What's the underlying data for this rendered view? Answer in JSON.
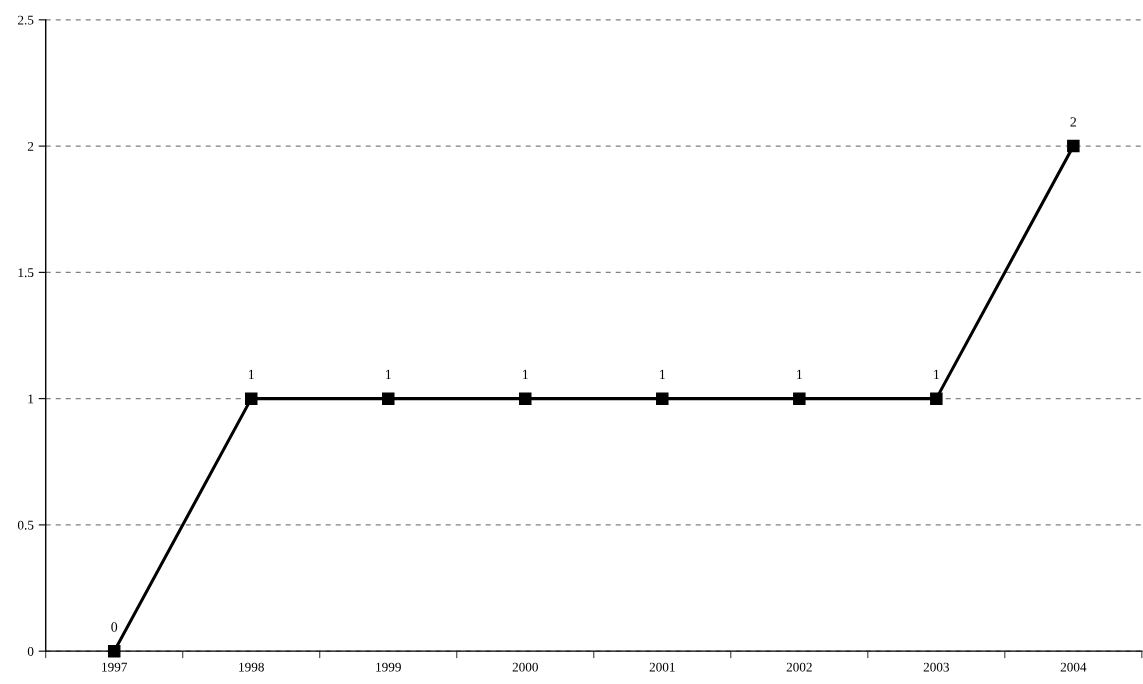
{
  "chart_data": {
    "type": "line",
    "categories": [
      "1997",
      "1998",
      "1999",
      "2000",
      "2001",
      "2002",
      "2003",
      "2004"
    ],
    "series": [
      {
        "color": "#000000",
        "values": [
          0,
          1,
          1,
          1,
          1,
          1,
          1,
          2
        ]
      }
    ],
    "ylim": [
      0,
      2.5
    ],
    "yticks": [
      0,
      0.5,
      1,
      1.5,
      2,
      2.5
    ],
    "grid": "y",
    "marker": "square",
    "line_style": "solid",
    "data_labels": true
  }
}
